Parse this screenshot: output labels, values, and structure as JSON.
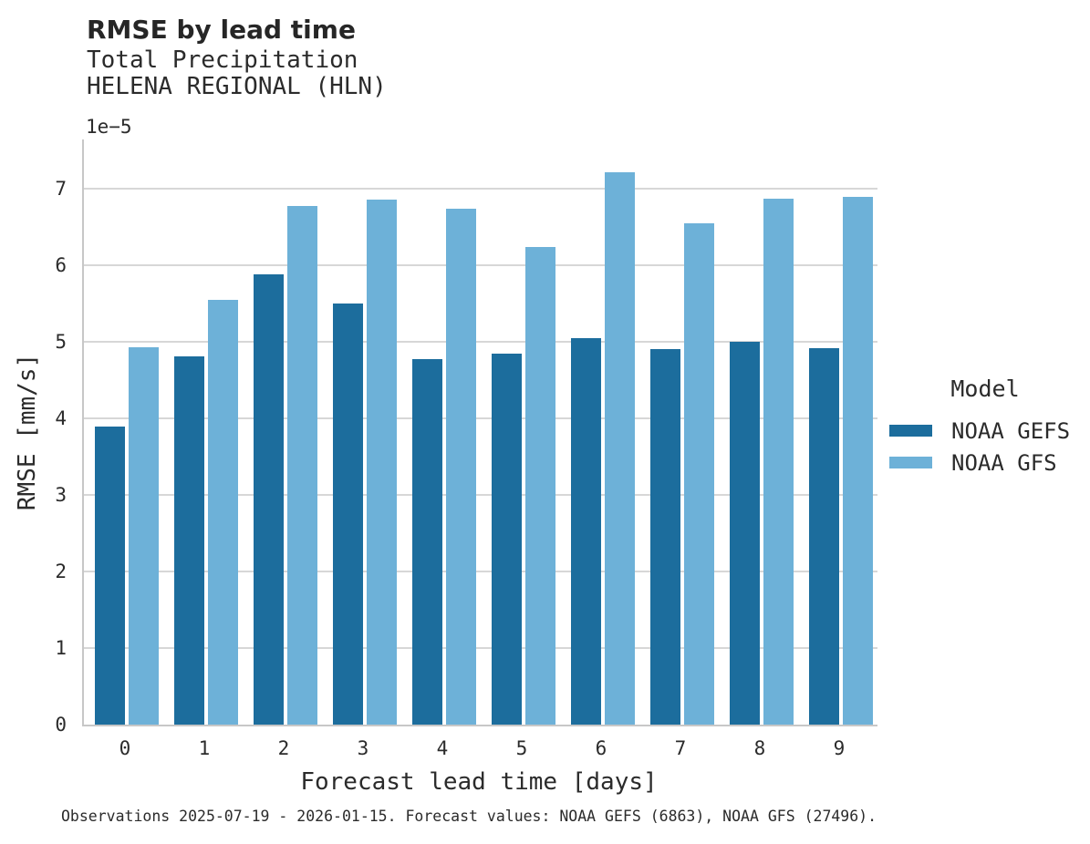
{
  "header": {
    "title": "RMSE by lead time",
    "subtitle_line1": "Total Precipitation",
    "subtitle_line2": "HELENA REGIONAL (HLN)"
  },
  "chart_data": {
    "type": "bar",
    "title": "RMSE by lead time",
    "subtitle": [
      "Total Precipitation",
      "HELENA REGIONAL (HLN)"
    ],
    "categories": [
      "0",
      "1",
      "2",
      "3",
      "4",
      "5",
      "6",
      "7",
      "8",
      "9"
    ],
    "series": [
      {
        "name": "NOAA GEFS",
        "color": "#1c6d9d",
        "values": [
          3.89,
          4.81,
          5.88,
          5.5,
          4.77,
          4.84,
          5.05,
          4.9,
          5.0,
          4.91
        ]
      },
      {
        "name": "NOAA GFS",
        "color": "#6db1d8",
        "values": [
          4.93,
          5.55,
          6.77,
          6.86,
          6.73,
          6.23,
          7.21,
          6.55,
          6.87,
          6.89
        ]
      }
    ],
    "value_scale": "1e-5",
    "offset_text": "1e−5",
    "xlabel": "Forecast lead time [days]",
    "ylabel": "RMSE [mm/s]",
    "ylim": [
      0,
      7.64
    ],
    "yticks": [
      0,
      1,
      2,
      3,
      4,
      5,
      6,
      7
    ],
    "grid": "horizontal",
    "legend_position": "right"
  },
  "legend": {
    "title": "Model",
    "items": [
      {
        "label": "NOAA GEFS",
        "color": "#1c6d9d"
      },
      {
        "label": "NOAA GFS",
        "color": "#6db1d8"
      }
    ]
  },
  "footer": {
    "caption": "Observations 2025-07-19 - 2026-01-15. Forecast values: NOAA GEFS (6863), NOAA GFS (27496)."
  },
  "colors": {
    "bar_dark": "#1c6d9d",
    "bar_light": "#6db1d8",
    "gridline": "#d7d7d7",
    "spine": "#c7c7c7",
    "text": "#2b2b2b"
  }
}
